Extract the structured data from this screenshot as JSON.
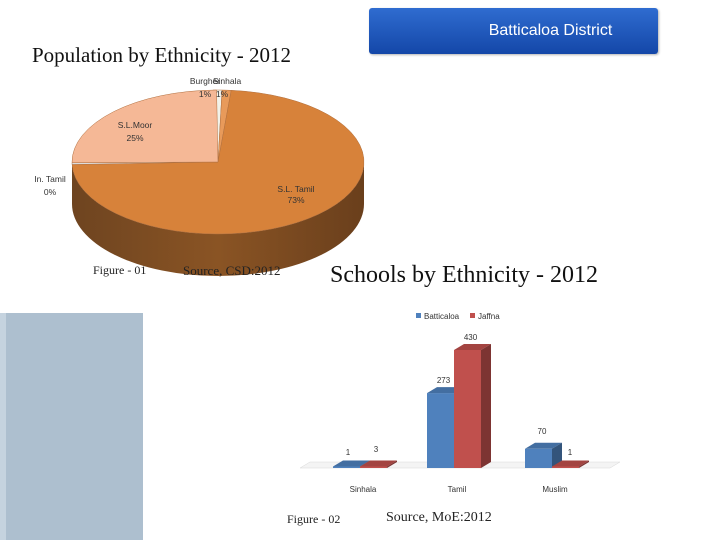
{
  "header": {
    "district": "Batticaloa District",
    "title1": "Population by Ethnicity  - 2012",
    "title2": "Schools by Ethnicity - 2012"
  },
  "captions": {
    "fig1": "Figure - 01",
    "src1": "Source, CSD:2012",
    "fig2": "Figure - 02",
    "src2": "Source,  MoE:2012"
  },
  "chart_data": [
    {
      "type": "pie",
      "title": "Population by Ethnicity  - 2012",
      "labels": [
        "Burgher",
        "Sinhala",
        "S.L.Moor",
        "In. Tamil",
        "S.L. Tamil"
      ],
      "percent_labels": [
        "1%",
        "1%",
        "25%",
        "0%",
        "73%"
      ],
      "values": [
        1,
        1,
        25,
        0,
        73
      ],
      "colors": [
        "#f2f2ea",
        "#e89a5a",
        "#f5b896",
        "#dcdcdc",
        "#d7823a"
      ],
      "legend": "none"
    },
    {
      "type": "bar",
      "title": "Schools by Ethnicity - 2012",
      "categories": [
        "Sinhala",
        "Tamil",
        "Muslim"
      ],
      "series": [
        {
          "name": "Batticaloa",
          "values": [
            1,
            273,
            70
          ],
          "color": "#4f81bd"
        },
        {
          "name": "Jaffna",
          "values": [
            3,
            430,
            1
          ],
          "color": "#c0504d"
        }
      ],
      "ylim": [
        0,
        430
      ],
      "grid": false,
      "legend": "top"
    }
  ]
}
